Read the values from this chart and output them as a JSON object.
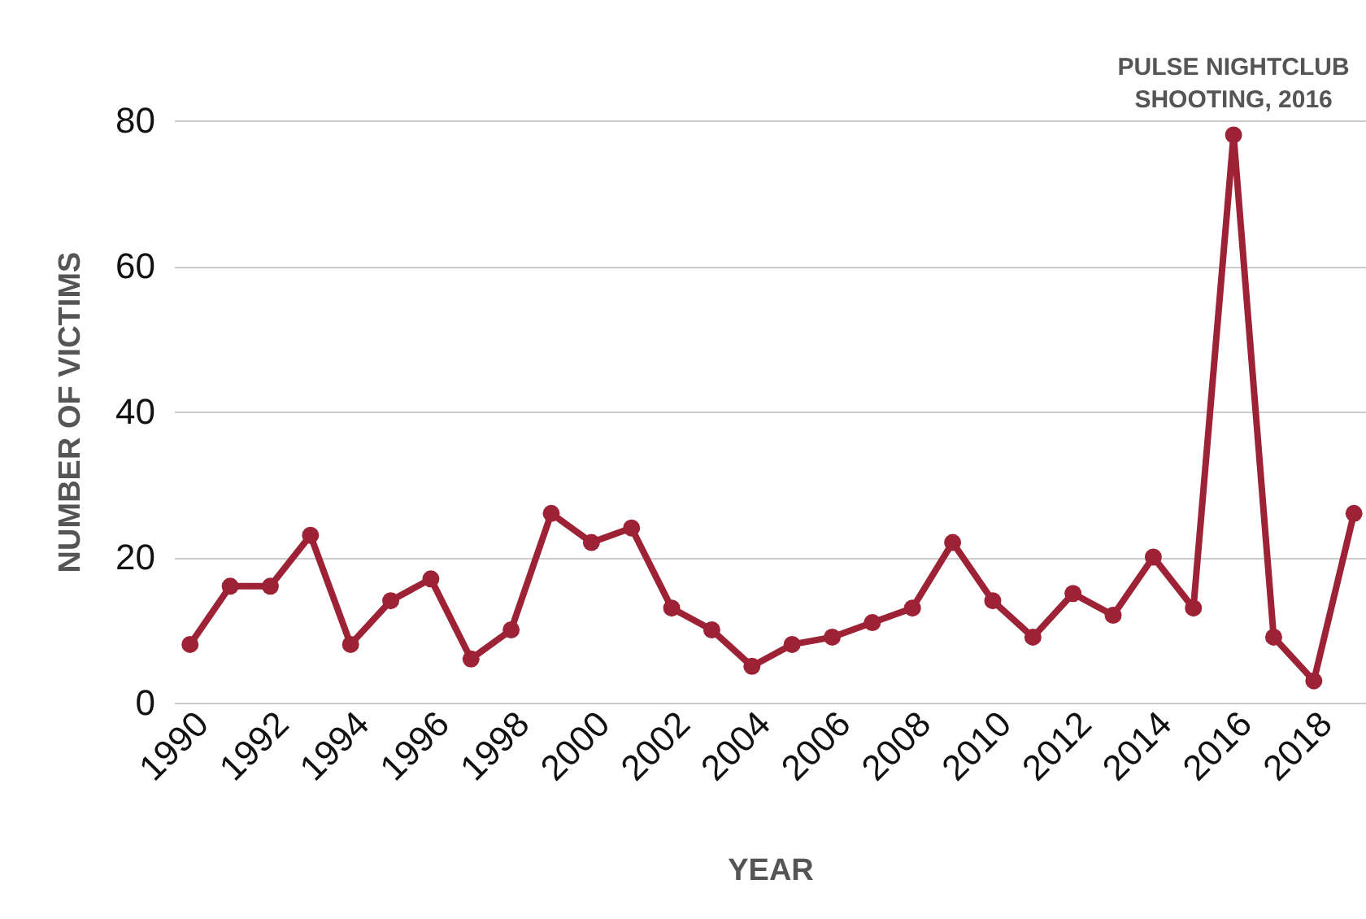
{
  "chart_data": {
    "type": "line",
    "xlabel": "YEAR",
    "ylabel": "NUMBER OF VICTIMS",
    "x": [
      1990,
      1991,
      1992,
      1993,
      1994,
      1995,
      1996,
      1997,
      1998,
      1999,
      2000,
      2001,
      2002,
      2003,
      2004,
      2005,
      2006,
      2007,
      2008,
      2009,
      2010,
      2011,
      2012,
      2013,
      2014,
      2015,
      2016,
      2017,
      2018,
      2019
    ],
    "series": [
      {
        "color": "#9e2236",
        "values": [
          8,
          16,
          16,
          23,
          8,
          14,
          17,
          6,
          10,
          26,
          22,
          24,
          13,
          10,
          5,
          8,
          9,
          11,
          13,
          22,
          14,
          9,
          15,
          12,
          20,
          13,
          78,
          9,
          3,
          26
        ]
      }
    ],
    "xlim": [
      1989.6,
      2019.3
    ],
    "xticks": [
      1990,
      1992,
      1994,
      1996,
      1998,
      2000,
      2002,
      2004,
      2006,
      2008,
      2010,
      2012,
      2014,
      2016,
      2018
    ],
    "ylim": [
      0,
      80
    ],
    "yticks": [
      0,
      20,
      40,
      60,
      80
    ],
    "grid": "y",
    "marker": "circle",
    "line_style": "solid",
    "annotations": [
      {
        "text": "PULSE NIGHTCLUB\nSHOOTING, 2016",
        "x": 2016,
        "y": 78
      }
    ]
  }
}
